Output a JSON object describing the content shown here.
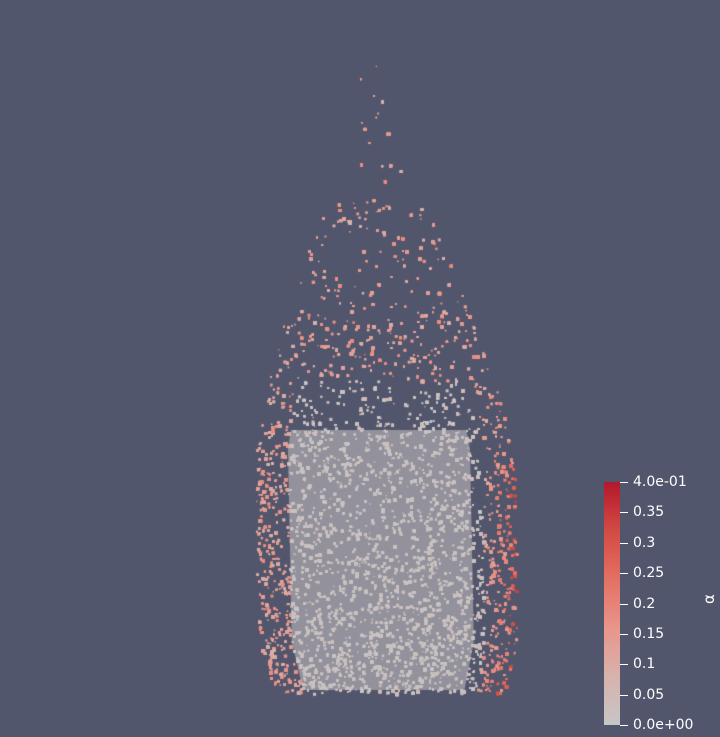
{
  "scene": {
    "background_color": "#52566c",
    "particle_colormap": [
      "#c6c6c6",
      "#d8b2ac",
      "#e8958a",
      "#e47064",
      "#d34a44",
      "#b2182b"
    ]
  },
  "colorbar": {
    "title": "α",
    "range": [
      0.0,
      0.4
    ],
    "ticks": [
      {
        "label": "4.0e-01",
        "value": 0.4
      },
      {
        "label": "0.35",
        "value": 0.35
      },
      {
        "label": "0.3",
        "value": 0.3
      },
      {
        "label": "0.25",
        "value": 0.25
      },
      {
        "label": "0.2",
        "value": 0.2
      },
      {
        "label": "0.15",
        "value": 0.15
      },
      {
        "label": "0.1",
        "value": 0.1
      },
      {
        "label": "0.05",
        "value": 0.05
      },
      {
        "label": "0.0e+00",
        "value": 0.0
      }
    ]
  }
}
